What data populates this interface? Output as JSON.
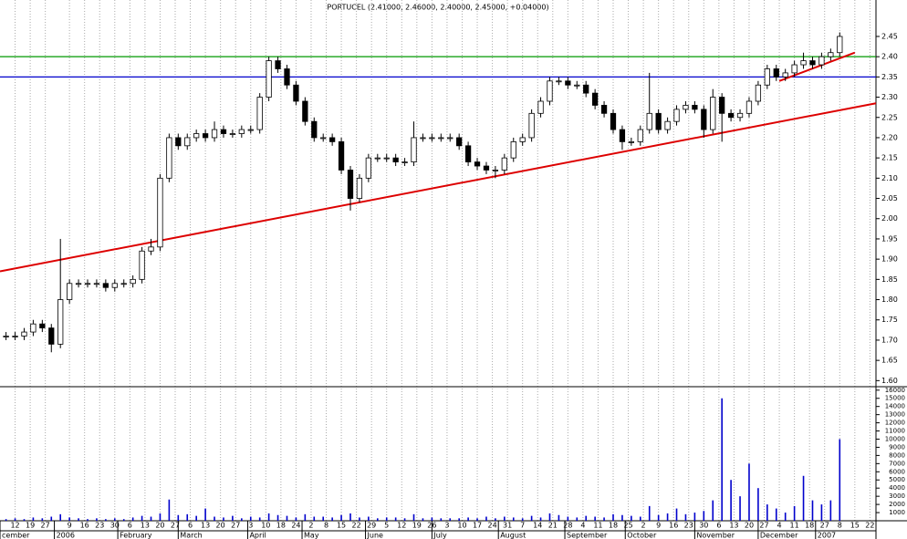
{
  "chart_data": {
    "type": "candlestick",
    "title": "PORTUCEL (2.41000, 2.46000, 2.40000, 2.45000, +0.04000)",
    "x": [
      2,
      5,
      8,
      11,
      14,
      17,
      20,
      23,
      26,
      29,
      32,
      35,
      38,
      41,
      44,
      47,
      50,
      53,
      56,
      59,
      62,
      65,
      68,
      71,
      74,
      77,
      80,
      83,
      86,
      89,
      92,
      95,
      98,
      101,
      104,
      107,
      110,
      113,
      116,
      119,
      122,
      125,
      128,
      131,
      134,
      137,
      140,
      143,
      146,
      149,
      152,
      155,
      158,
      161,
      164,
      167,
      170,
      173,
      176,
      179,
      182,
      185,
      188,
      191,
      194,
      197,
      200,
      203,
      206,
      209,
      212,
      215,
      218,
      221,
      224,
      227,
      230,
      233,
      236,
      239,
      242,
      245,
      248,
      251,
      254,
      257,
      260,
      263,
      266,
      269,
      272,
      275,
      278
    ],
    "open": [
      1.71,
      1.71,
      1.71,
      1.72,
      1.74,
      1.73,
      1.69,
      1.8,
      1.84,
      1.84,
      1.84,
      1.84,
      1.83,
      1.84,
      1.84,
      1.85,
      1.92,
      1.93,
      2.1,
      2.2,
      2.18,
      2.2,
      2.21,
      2.2,
      2.22,
      2.21,
      2.21,
      2.22,
      2.22,
      2.3,
      2.39,
      2.37,
      2.33,
      2.29,
      2.24,
      2.2,
      2.2,
      2.19,
      2.12,
      2.05,
      2.1,
      2.15,
      2.15,
      2.15,
      2.14,
      2.14,
      2.2,
      2.2,
      2.2,
      2.2,
      2.2,
      2.18,
      2.14,
      2.13,
      2.12,
      2.12,
      2.15,
      2.19,
      2.2,
      2.26,
      2.29,
      2.34,
      2.34,
      2.33,
      2.33,
      2.31,
      2.28,
      2.26,
      2.22,
      2.19,
      2.19,
      2.22,
      2.26,
      2.22,
      2.24,
      2.27,
      2.28,
      2.27,
      2.22,
      2.3,
      2.26,
      2.25,
      2.26,
      2.29,
      2.33,
      2.37,
      2.35,
      2.36,
      2.38,
      2.39,
      2.38,
      2.4,
      2.41
    ],
    "high": [
      1.72,
      1.72,
      1.73,
      1.75,
      1.75,
      1.74,
      1.95,
      1.85,
      1.85,
      1.85,
      1.85,
      1.85,
      1.85,
      1.85,
      1.86,
      1.93,
      1.95,
      2.11,
      2.21,
      2.21,
      2.21,
      2.22,
      2.22,
      2.24,
      2.23,
      2.22,
      2.23,
      2.23,
      2.31,
      2.4,
      2.4,
      2.38,
      2.34,
      2.3,
      2.25,
      2.21,
      2.21,
      2.2,
      2.13,
      2.11,
      2.16,
      2.16,
      2.16,
      2.16,
      2.15,
      2.24,
      2.21,
      2.21,
      2.21,
      2.21,
      2.21,
      2.19,
      2.15,
      2.14,
      2.13,
      2.16,
      2.2,
      2.21,
      2.27,
      2.3,
      2.35,
      2.35,
      2.35,
      2.34,
      2.34,
      2.32,
      2.29,
      2.27,
      2.23,
      2.2,
      2.23,
      2.36,
      2.27,
      2.25,
      2.28,
      2.29,
      2.29,
      2.28,
      2.32,
      2.31,
      2.27,
      2.27,
      2.3,
      2.34,
      2.38,
      2.38,
      2.37,
      2.39,
      2.41,
      2.4,
      2.41,
      2.42,
      2.46
    ],
    "low": [
      1.7,
      1.7,
      1.7,
      1.71,
      1.72,
      1.67,
      1.68,
      1.79,
      1.83,
      1.83,
      1.83,
      1.82,
      1.82,
      1.83,
      1.83,
      1.84,
      1.91,
      1.92,
      2.09,
      2.17,
      2.17,
      2.19,
      2.19,
      2.19,
      2.2,
      2.2,
      2.2,
      2.21,
      2.21,
      2.29,
      2.36,
      2.32,
      2.28,
      2.23,
      2.19,
      2.19,
      2.18,
      2.11,
      2.02,
      2.04,
      2.09,
      2.14,
      2.14,
      2.13,
      2.13,
      2.13,
      2.19,
      2.19,
      2.19,
      2.19,
      2.17,
      2.13,
      2.12,
      2.11,
      2.1,
      2.11,
      2.14,
      2.18,
      2.19,
      2.25,
      2.28,
      2.33,
      2.32,
      2.32,
      2.3,
      2.27,
      2.25,
      2.21,
      2.17,
      2.18,
      2.18,
      2.21,
      2.21,
      2.21,
      2.23,
      2.26,
      2.26,
      2.2,
      2.21,
      2.19,
      2.24,
      2.24,
      2.25,
      2.28,
      2.32,
      2.34,
      2.34,
      2.35,
      2.37,
      2.37,
      2.37,
      2.39,
      2.4
    ],
    "close": [
      1.71,
      1.71,
      1.72,
      1.74,
      1.73,
      1.69,
      1.8,
      1.84,
      1.84,
      1.84,
      1.84,
      1.83,
      1.84,
      1.84,
      1.85,
      1.92,
      1.93,
      2.1,
      2.2,
      2.18,
      2.2,
      2.21,
      2.2,
      2.22,
      2.21,
      2.21,
      2.22,
      2.22,
      2.3,
      2.39,
      2.37,
      2.33,
      2.29,
      2.24,
      2.2,
      2.2,
      2.19,
      2.12,
      2.05,
      2.1,
      2.15,
      2.15,
      2.15,
      2.14,
      2.14,
      2.2,
      2.2,
      2.2,
      2.2,
      2.2,
      2.18,
      2.14,
      2.13,
      2.12,
      2.12,
      2.15,
      2.19,
      2.2,
      2.26,
      2.29,
      2.34,
      2.34,
      2.33,
      2.33,
      2.31,
      2.28,
      2.26,
      2.22,
      2.19,
      2.19,
      2.22,
      2.26,
      2.22,
      2.24,
      2.27,
      2.28,
      2.27,
      2.22,
      2.3,
      2.26,
      2.25,
      2.26,
      2.29,
      2.33,
      2.37,
      2.35,
      2.36,
      2.38,
      2.39,
      2.38,
      2.4,
      2.41,
      2.45
    ],
    "volume": [
      200,
      300,
      200,
      400,
      300,
      500,
      800,
      400,
      300,
      200,
      300,
      200,
      300,
      200,
      400,
      600,
      500,
      900,
      2600,
      700,
      800,
      600,
      1500,
      500,
      400,
      600,
      300,
      500,
      400,
      900,
      700,
      600,
      400,
      800,
      500,
      500,
      400,
      700,
      900,
      400,
      500,
      300,
      400,
      400,
      300,
      800,
      300,
      400,
      300,
      300,
      300,
      400,
      300,
      500,
      300,
      500,
      400,
      300,
      600,
      400,
      900,
      700,
      500,
      400,
      600,
      500,
      400,
      800,
      700,
      600,
      500,
      1800,
      700,
      900,
      1500,
      800,
      1000,
      1200,
      2500,
      15000,
      5000,
      3000,
      7000,
      4000,
      2000,
      1500,
      1000,
      1800,
      5500,
      2500,
      2000,
      2500,
      10000
    ],
    "up_color": "#ffffff",
    "down_color": "#000000",
    "volume_color": "#0000cc",
    "xlim": [
      0,
      290
    ],
    "xticks": [
      {
        "value": 5,
        "label": "12"
      },
      {
        "value": 10,
        "label": "19"
      },
      {
        "value": 15,
        "label": "27"
      },
      {
        "value": 23,
        "label": "9"
      },
      {
        "value": 28,
        "label": "16"
      },
      {
        "value": 33,
        "label": "23"
      },
      {
        "value": 38,
        "label": "30"
      },
      {
        "value": 43,
        "label": "6"
      },
      {
        "value": 48,
        "label": "13"
      },
      {
        "value": 53,
        "label": "20"
      },
      {
        "value": 58,
        "label": "27"
      },
      {
        "value": 63,
        "label": "6"
      },
      {
        "value": 68,
        "label": "13"
      },
      {
        "value": 73,
        "label": "20"
      },
      {
        "value": 78,
        "label": "27"
      },
      {
        "value": 83,
        "label": "3"
      },
      {
        "value": 88,
        "label": "10"
      },
      {
        "value": 93,
        "label": "18"
      },
      {
        "value": 98,
        "label": "24"
      },
      {
        "value": 103,
        "label": "2"
      },
      {
        "value": 108,
        "label": "8"
      },
      {
        "value": 113,
        "label": "15"
      },
      {
        "value": 118,
        "label": "22"
      },
      {
        "value": 123,
        "label": "29"
      },
      {
        "value": 128,
        "label": "5"
      },
      {
        "value": 133,
        "label": "12"
      },
      {
        "value": 138,
        "label": "19"
      },
      {
        "value": 143,
        "label": "26"
      },
      {
        "value": 148,
        "label": "3"
      },
      {
        "value": 153,
        "label": "10"
      },
      {
        "value": 158,
        "label": "17"
      },
      {
        "value": 163,
        "label": "24"
      },
      {
        "value": 168,
        "label": "31"
      },
      {
        "value": 173,
        "label": "7"
      },
      {
        "value": 178,
        "label": "14"
      },
      {
        "value": 183,
        "label": "21"
      },
      {
        "value": 188,
        "label": "28"
      },
      {
        "value": 193,
        "label": "4"
      },
      {
        "value": 198,
        "label": "11"
      },
      {
        "value": 203,
        "label": "18"
      },
      {
        "value": 208,
        "label": "25"
      },
      {
        "value": 213,
        "label": "2"
      },
      {
        "value": 218,
        "label": "9"
      },
      {
        "value": 223,
        "label": "16"
      },
      {
        "value": 228,
        "label": "23"
      },
      {
        "value": 233,
        "label": "30"
      },
      {
        "value": 238,
        "label": "6"
      },
      {
        "value": 243,
        "label": "13"
      },
      {
        "value": 248,
        "label": "20"
      },
      {
        "value": 253,
        "label": "27"
      },
      {
        "value": 258,
        "label": "4"
      },
      {
        "value": 263,
        "label": "11"
      },
      {
        "value": 268,
        "label": "18"
      },
      {
        "value": 273,
        "label": "27"
      },
      {
        "value": 278,
        "label": "8"
      },
      {
        "value": 283,
        "label": "15"
      },
      {
        "value": 288,
        "label": "22"
      }
    ],
    "month_labels": [
      {
        "value": 0,
        "label": "cember"
      },
      {
        "value": 18,
        "label": "2006"
      },
      {
        "value": 39,
        "label": "February"
      },
      {
        "value": 59,
        "label": "March"
      },
      {
        "value": 82,
        "label": "April"
      },
      {
        "value": 100,
        "label": "May"
      },
      {
        "value": 121,
        "label": "June"
      },
      {
        "value": 143,
        "label": "July"
      },
      {
        "value": 165,
        "label": "August"
      },
      {
        "value": 187,
        "label": "September"
      },
      {
        "value": 207,
        "label": "October"
      },
      {
        "value": 230,
        "label": "November"
      },
      {
        "value": 251,
        "label": "December"
      },
      {
        "value": 270,
        "label": "2007"
      }
    ],
    "ylim": [
      1.585,
      2.54
    ],
    "yticks": [
      {
        "value": 1.6,
        "label": "1.60"
      },
      1.65,
      {
        "value": 1.7,
        "label": "1.70"
      },
      1.75,
      {
        "value": 1.8,
        "label": "1.80"
      },
      1.85,
      {
        "value": 1.9,
        "label": "1.90"
      },
      1.95,
      {
        "value": 2,
        "label": "2.00"
      },
      2.05,
      {
        "value": 2.1,
        "label": "2.10"
      },
      2.15,
      {
        "value": 2.2,
        "label": "2.20"
      },
      2.25,
      {
        "value": 2.3,
        "label": "2.30"
      },
      2.35,
      {
        "value": 2.4,
        "label": "2.40"
      },
      2.45
    ],
    "volume_ylim": [
      0,
      16200
    ],
    "volume_ticks": [
      1000,
      2000,
      3000,
      4000,
      5000,
      6000,
      7000,
      8000,
      9000,
      10000,
      11000,
      12000,
      13000,
      14000,
      15000,
      16000
    ],
    "hlines": [
      {
        "value": 2.4,
        "color": "#009900"
      },
      {
        "value": 2.35,
        "color": "#0000cc"
      }
    ],
    "trendlines": [
      {
        "x": [
          0,
          290
        ],
        "y": [
          1.87,
          2.285
        ],
        "color": "#dd0000"
      },
      {
        "x": [
          258,
          283
        ],
        "y": [
          2.34,
          2.41
        ],
        "color": "#dd0000"
      }
    ],
    "grid": true
  }
}
